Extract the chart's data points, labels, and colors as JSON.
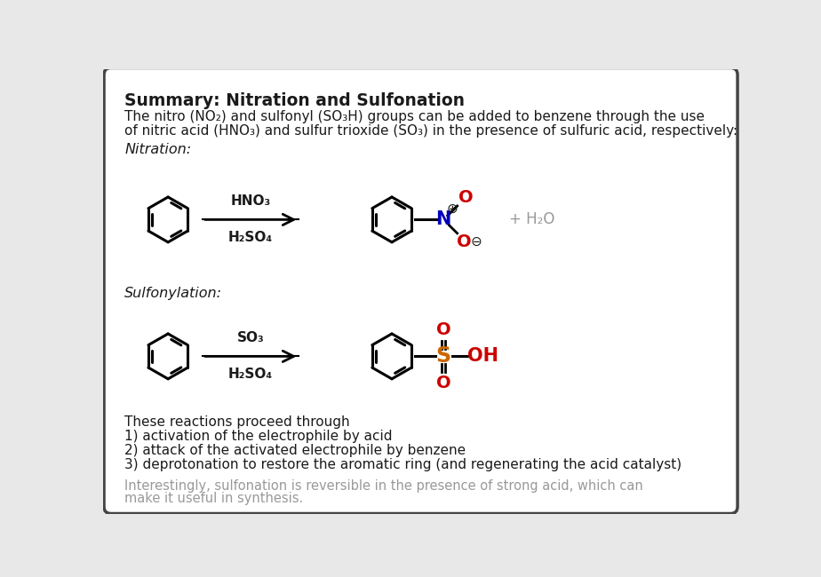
{
  "bg_color": "#e8e8e8",
  "box_color": "#ffffff",
  "border_color": "#444444",
  "title": "Summary: Nitration and Sulfonation",
  "title_fontsize": 13.5,
  "intro_line1": "The nitro (NO₂) and sulfonyl (SO₃H) groups can be added to benzene through the use",
  "intro_line2": "of nitric acid (HNO₃) and sulfur trioxide (SO₃) in the presence of sulfuric acid, respectively:",
  "nitration_label": "Nitration:",
  "sulfonylation_label": "Sulfonylation:",
  "nitration_reagent_top": "HNO₃",
  "nitration_reagent_bot": "H₂SO₄",
  "sulfonation_reagent_top": "SO₃",
  "sulfonation_reagent_bot": "H₂SO₄",
  "water_label": "+ H₂O",
  "footer_line0": "These reactions proceed through",
  "footer_line1": "1) activation of the electrophile by acid",
  "footer_line2": "2) attack of the activated electrophile by benzene",
  "footer_line3": "3) deprotonation to restore the aromatic ring (and regenerating the acid catalyst)",
  "footnote_line1": "Interestingly, sulfonation is reversible in the presence of strong acid, which can",
  "footnote_line2": "make it useful in synthesis.",
  "text_color": "#1a1a1a",
  "gray_color": "#999999",
  "red_color": "#cc0000",
  "blue_color": "#0000bb",
  "orange_color": "#cc6600",
  "black_color": "#000000"
}
